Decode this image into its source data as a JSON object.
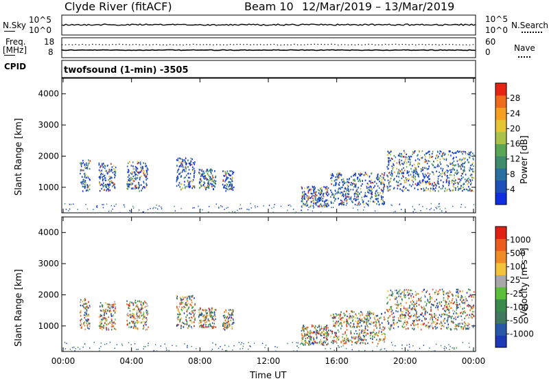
{
  "header": {
    "station": "Clyde River (fitACF)",
    "beam": "Beam 10",
    "date_range": "12/Mar/2019 – 13/Mar/2019"
  },
  "summary": {
    "nsky_label": "N.Sky",
    "nsearch_label": "N.Search",
    "noise_ticks_left": [
      "10^5",
      "10^0"
    ],
    "noise_ticks_right": [
      "10^5",
      "10^0"
    ],
    "freq_label": "Freq.",
    "freq_unit": "[MHz]",
    "freq_ticks": [
      "18",
      "8"
    ],
    "nave_label": "Nave",
    "nave_ticks": [
      "60",
      "0"
    ],
    "cpid_label": "CPID",
    "cpid_text": "twofsound (1-min) -3505"
  },
  "chart_data": [
    {
      "type": "heatmap",
      "parameter": "Power",
      "ylabel": "Slant Range [km]",
      "xlabel": "Time UT",
      "ylim": [
        180,
        4500
      ],
      "yticks": [
        "1000",
        "2000",
        "3000",
        "4000"
      ],
      "xticks": [
        "00:00",
        "04:00",
        "08:00",
        "12:00",
        "16:00",
        "20:00",
        "00:00"
      ],
      "colorbar": {
        "label": "Power [dB]",
        "ticks": [
          "4",
          "8",
          "12",
          "16",
          "20",
          "24",
          "28"
        ],
        "colors": [
          "#1030e0",
          "#1f4fb8",
          "#2a6fa0",
          "#3f8c6c",
          "#5aa655",
          "#a8c24a",
          "#e5c532",
          "#f5a020",
          "#ef6a1c",
          "#e52414"
        ]
      },
      "echo_regions": [
        {
          "t0": 0.95,
          "t1": 1.55,
          "r0": 900,
          "r1": 1900
        },
        {
          "t0": 2.05,
          "t1": 3.05,
          "r0": 900,
          "r1": 1800
        },
        {
          "t0": 3.7,
          "t1": 4.95,
          "r0": 900,
          "r1": 1850
        },
        {
          "t0": 6.6,
          "t1": 7.7,
          "r0": 950,
          "r1": 2000
        },
        {
          "t0": 7.9,
          "t1": 8.9,
          "r0": 950,
          "r1": 1600
        },
        {
          "t0": 9.3,
          "t1": 9.95,
          "r0": 900,
          "r1": 1550
        },
        {
          "t0": 13.9,
          "t1": 15.5,
          "r0": 400,
          "r1": 1050
        },
        {
          "t0": 15.6,
          "t1": 18.8,
          "r0": 450,
          "r1": 1500
        },
        {
          "t0": 18.9,
          "t1": 24,
          "r0": 900,
          "r1": 2200
        }
      ]
    },
    {
      "type": "heatmap",
      "parameter": "Velocity",
      "ylabel": "Slant Range [km]",
      "xlabel": "Time UT",
      "ylim": [
        180,
        4500
      ],
      "yticks": [
        "1000",
        "2000",
        "3000",
        "4000"
      ],
      "xticks": [
        "00:00",
        "04:00",
        "08:00",
        "12:00",
        "16:00",
        "20:00",
        "00:00"
      ],
      "colorbar": {
        "label": "Velocity [m s⁻¹]",
        "ticks": [
          "1000",
          "500",
          "100",
          "25",
          "-25",
          "-100",
          "-500",
          "-1000"
        ],
        "colors": [
          "#1c39b8",
          "#2a58a8",
          "#3f7a60",
          "#3a8a4c",
          "#5cbf3a",
          "#a8a8a8",
          "#f3c33a",
          "#f08c25",
          "#ec5c1e",
          "#e02015"
        ]
      },
      "echo_regions": [
        {
          "t0": 0.95,
          "t1": 1.55,
          "r0": 900,
          "r1": 1900
        },
        {
          "t0": 2.05,
          "t1": 3.05,
          "r0": 900,
          "r1": 1800
        },
        {
          "t0": 3.7,
          "t1": 4.95,
          "r0": 900,
          "r1": 1850
        },
        {
          "t0": 6.6,
          "t1": 7.7,
          "r0": 950,
          "r1": 2000
        },
        {
          "t0": 7.9,
          "t1": 8.9,
          "r0": 950,
          "r1": 1600
        },
        {
          "t0": 9.3,
          "t1": 9.95,
          "r0": 900,
          "r1": 1550
        },
        {
          "t0": 13.9,
          "t1": 15.5,
          "r0": 400,
          "r1": 1050
        },
        {
          "t0": 15.6,
          "t1": 18.8,
          "r0": 450,
          "r1": 1500
        },
        {
          "t0": 18.9,
          "t1": 24,
          "r0": 900,
          "r1": 2200
        }
      ]
    }
  ]
}
